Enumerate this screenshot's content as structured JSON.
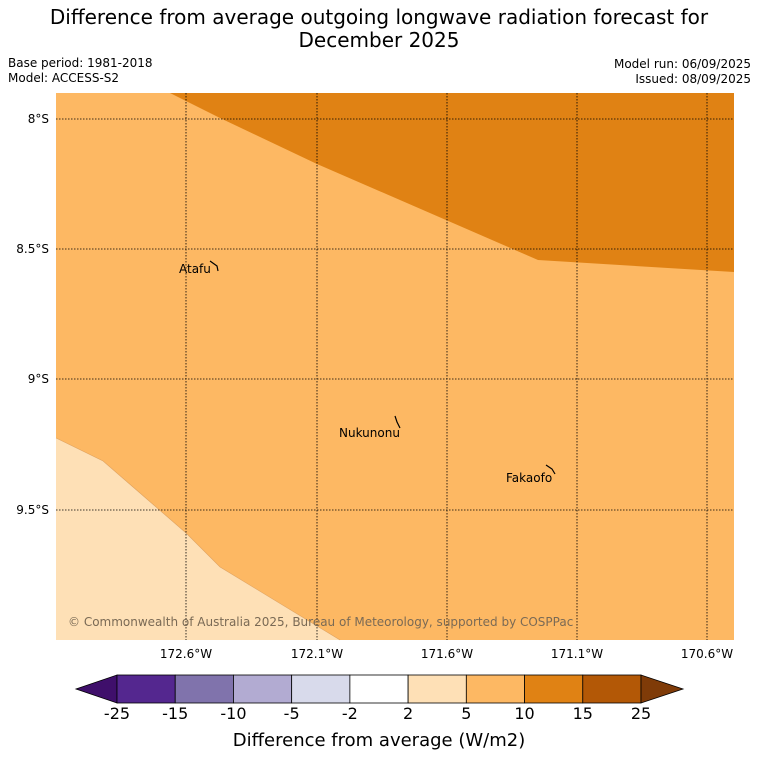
{
  "title_line1": "Difference from average outgoing longwave radiation forecast for",
  "title_line2": "December 2025",
  "base_period": "Base period: 1981-2018",
  "model": "Model: ACCESS-S2",
  "model_run": "Model run: 06/09/2025",
  "issued": "Issued: 08/09/2025",
  "copyright": "© Commonwealth of Australia 2025, Bureau of Meteorology, supported by COSPPac",
  "lat_labels": [
    "8°S",
    "8.5°S",
    "9°S",
    "9.5°S"
  ],
  "lon_labels": [
    "172.6°W",
    "172.1°W",
    "171.6°W",
    "171.1°W",
    "170.6°W"
  ],
  "places": [
    "Atafu",
    "Nukunonu",
    "Fakaofo"
  ],
  "colorbar": {
    "title": "Difference from average (W/m2)",
    "tick_labels": [
      "-25",
      "-15",
      "-10",
      "-5",
      "-2",
      "2",
      "5",
      "10",
      "15",
      "25"
    ],
    "colors": [
      "#3f0f6b",
      "#54278f",
      "#8073ac",
      "#b2abd2",
      "#d8daeb",
      "#ffffff",
      "#fee0b6",
      "#fdb863",
      "#e08214",
      "#b35806",
      "#7f3b08"
    ]
  },
  "map_colors": {
    "light": "#fee0b6",
    "mid": "#fdb863",
    "dark": "#e08214"
  }
}
